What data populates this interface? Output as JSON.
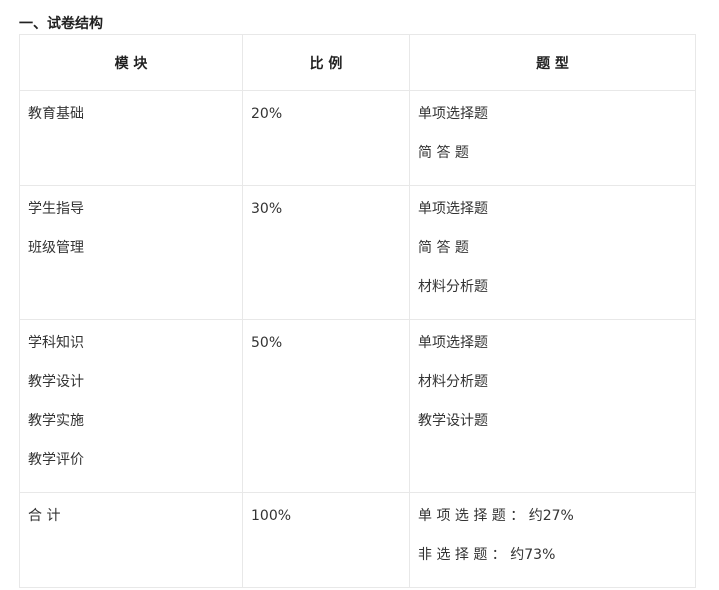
{
  "title": "一、试卷结构",
  "headers": [
    "模 块",
    "比 例",
    "题 型"
  ],
  "rows": [
    {
      "modules": [
        "教育基础"
      ],
      "ratio": "20%",
      "types": [
        "单项选择题",
        "简 答 题"
      ]
    },
    {
      "modules": [
        "学生指导",
        "班级管理"
      ],
      "ratio": "30%",
      "types": [
        "单项选择题",
        "简 答 题",
        "材料分析题"
      ]
    },
    {
      "modules": [
        "学科知识",
        "教学设计",
        "教学实施",
        "教学评价"
      ],
      "ratio": "50%",
      "types": [
        "单项选择题",
        "材料分析题",
        "教学设计题"
      ]
    },
    {
      "modules": [
        "合 计"
      ],
      "ratio": "100%",
      "types": [
        "单 项 选 择 题 ： 约27%",
        "非 选 择 题 ： 约73%"
      ]
    }
  ]
}
